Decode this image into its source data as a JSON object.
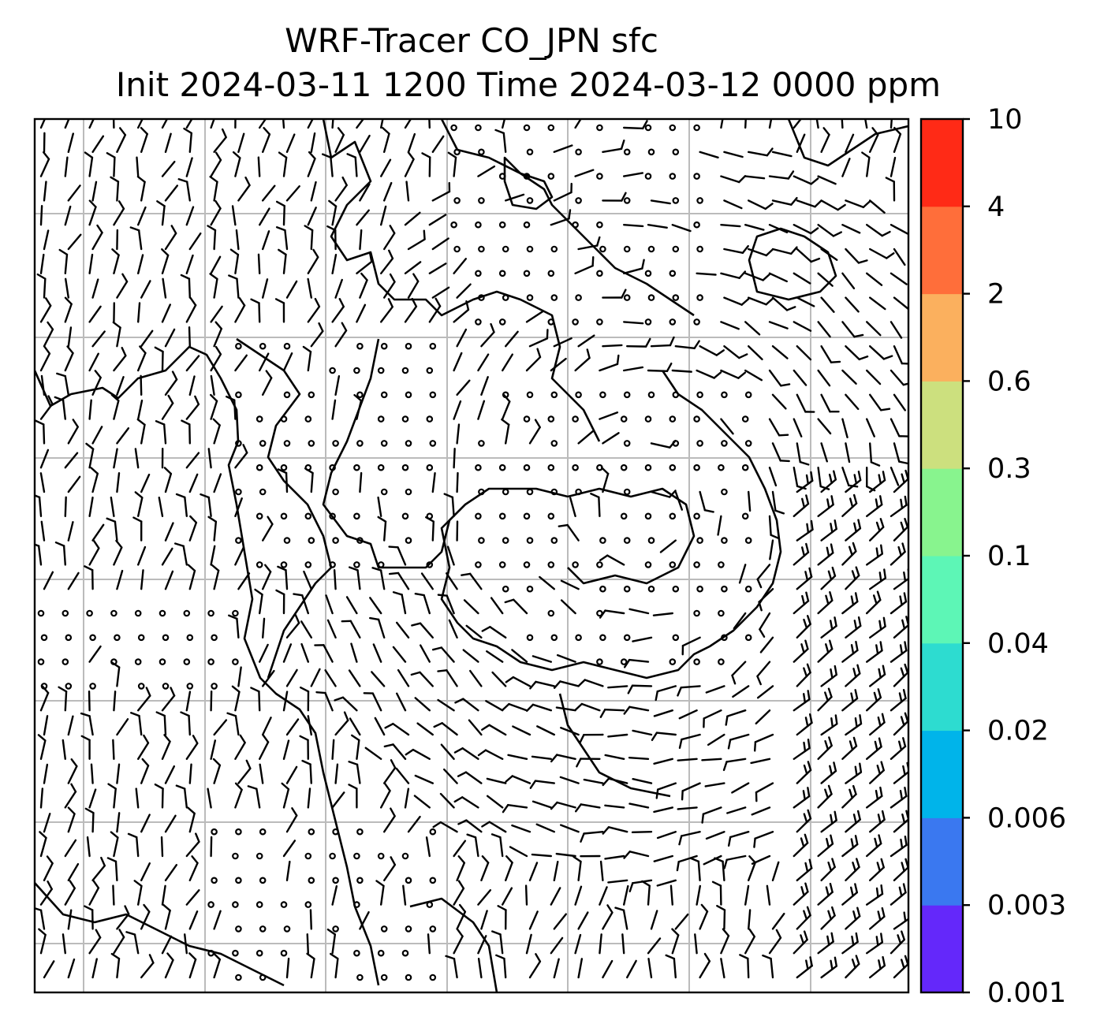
{
  "title": {
    "line1": "WRF-Tracer CO_JPN sfc",
    "line2": "Init 2024-03-11 1200 Time 2024-03-12 0000 ppm"
  },
  "colorbar": {
    "ticks": [
      "0.001",
      "0.003",
      "0.006",
      "0.02",
      "0.04",
      "0.1",
      "0.3",
      "0.6",
      "2",
      "4",
      "10"
    ],
    "colors": [
      "#6428fa",
      "#3a78f0",
      "#00b4ea",
      "#2ddcd0",
      "#5df6b6",
      "#88f48e",
      "#cce07e",
      "#fbb05e",
      "#ff6e3a",
      "#ff2a16"
    ]
  },
  "map": {
    "grid_color": "#bbbbbb",
    "coastline_color": "#000000",
    "features": [
      "wind-barbs",
      "calm-circles",
      "coastlines",
      "lat-lon-gridlines"
    ]
  }
}
